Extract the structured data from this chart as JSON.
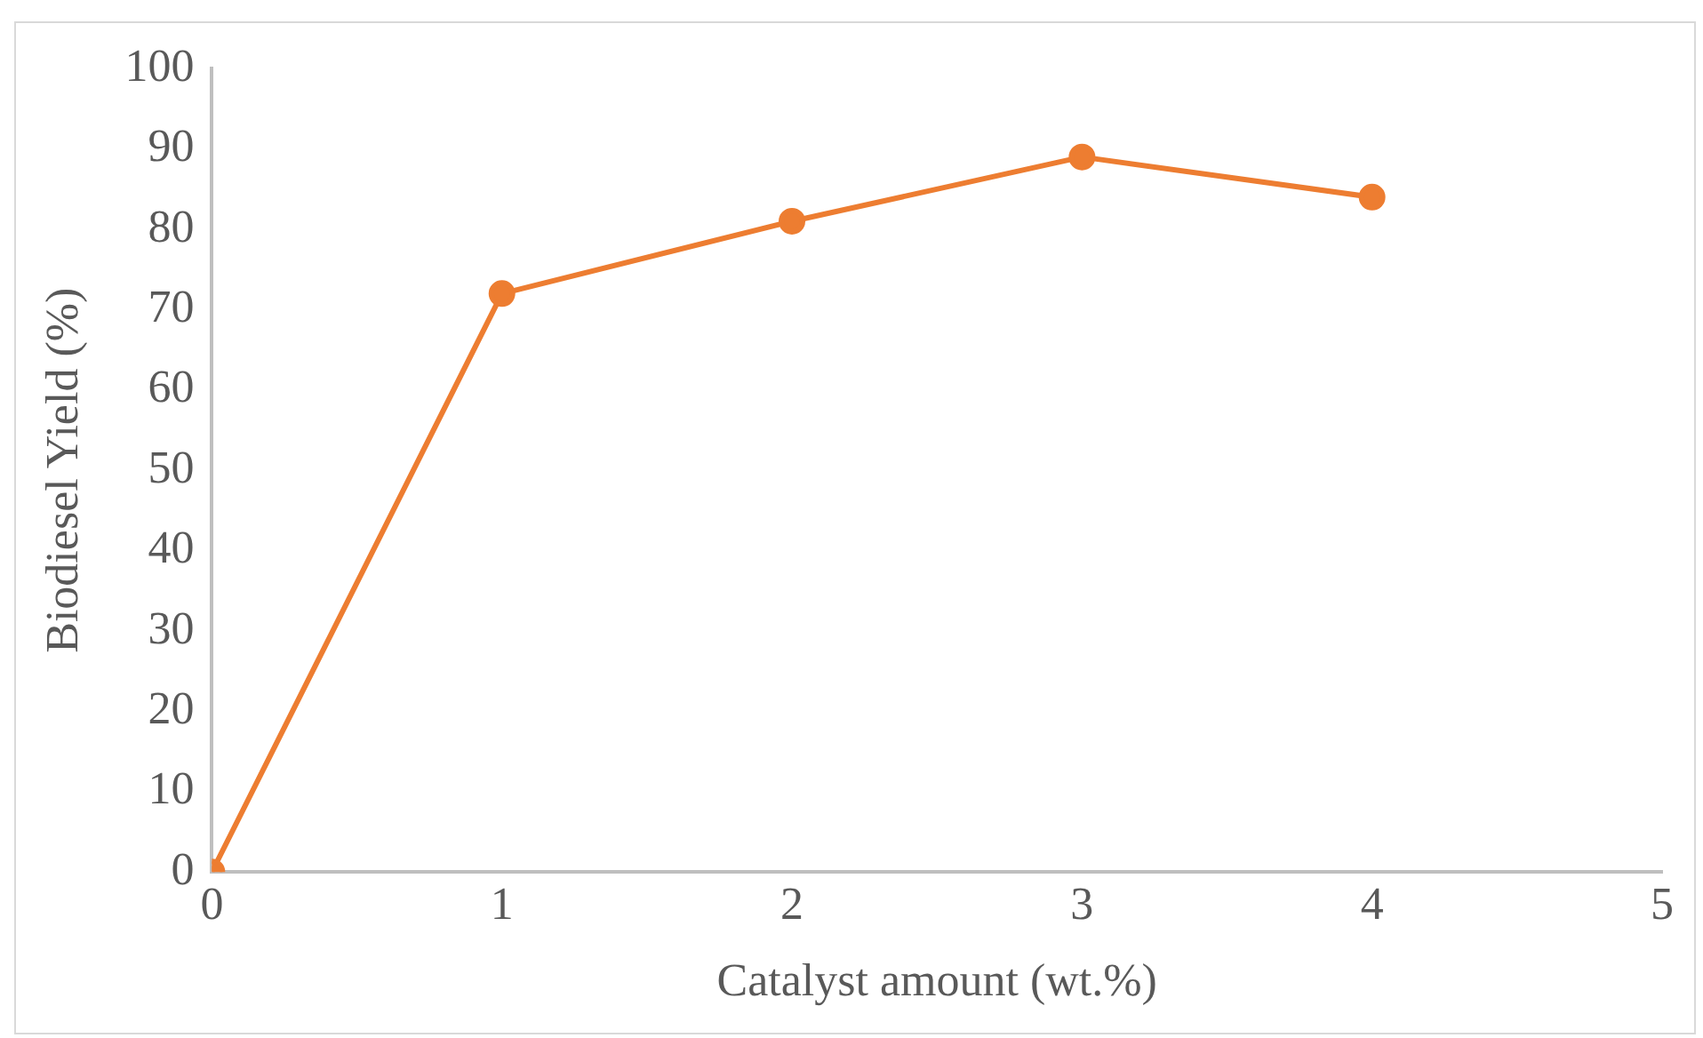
{
  "chart_data": {
    "type": "line",
    "xlabel": "Catalyst amount (wt.%)",
    "ylabel": "Biodiesel Yield (%)",
    "x": [
      0,
      1,
      2,
      3,
      4
    ],
    "series": [
      {
        "color": "#ed7d31",
        "values": [
          0,
          72,
          81,
          89,
          84
        ]
      }
    ],
    "xlim": [
      0,
      5
    ],
    "xticks": [
      0,
      1,
      2,
      3,
      4,
      5
    ],
    "ylim": [
      0,
      100
    ],
    "yticks": [
      0,
      10,
      20,
      30,
      40,
      50,
      60,
      70,
      80,
      90,
      100
    ],
    "grid": false,
    "legend": false,
    "marker": "circle",
    "line_style": "solid"
  }
}
